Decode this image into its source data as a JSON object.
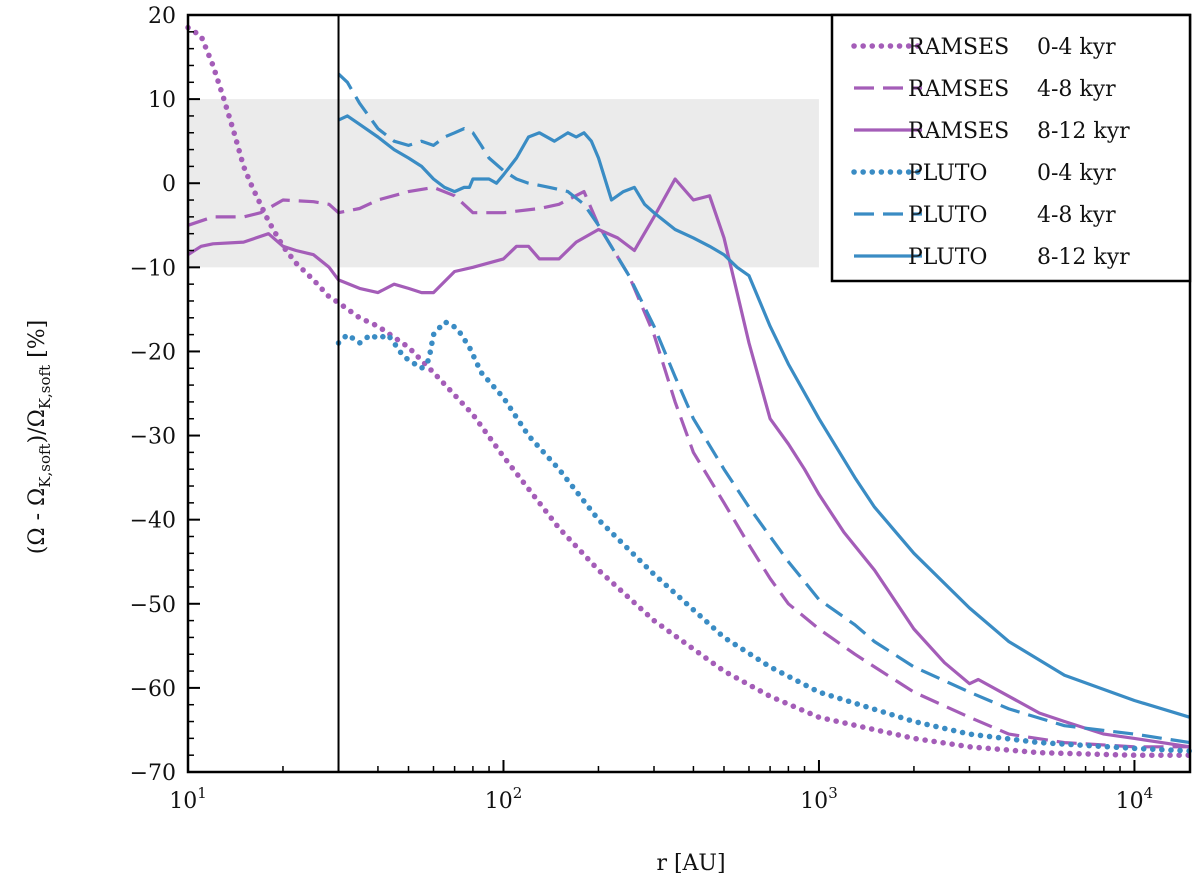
{
  "chart_data": {
    "type": "line",
    "xlabel": "r [AU]",
    "ylabel": "(Ω - Ω_K,soft)/Ω_K,soft [%]",
    "ylabel_parts": {
      "a": "(Ω - Ω",
      "b": "K,soft",
      "c": ")/Ω",
      "d": "K,soft",
      "e": " [%]"
    },
    "xscale": "log",
    "xlim": [
      10,
      15000
    ],
    "ylim": [
      -70,
      20
    ],
    "x_ticks": [
      {
        "base": "10",
        "exp": "1",
        "value": 10
      },
      {
        "base": "10",
        "exp": "2",
        "value": 100
      },
      {
        "base": "10",
        "exp": "3",
        "value": 1000
      },
      {
        "base": "10",
        "exp": "4",
        "value": 10000
      }
    ],
    "y_ticks": [
      20,
      10,
      0,
      -10,
      -20,
      -30,
      -40,
      -50,
      -60,
      -70
    ],
    "y_tick_labels": [
      "20",
      "10",
      "0",
      "−10",
      "−20",
      "−30",
      "−40",
      "−50",
      "−60",
      "−70"
    ],
    "shaded_band": {
      "y_from": -10,
      "y_to": 10,
      "x_to": 1000,
      "color": "#ebebeb"
    },
    "vertical_line_x": 30,
    "legend_position": "top-right",
    "colors": {
      "ramses": "#a45db8",
      "pluto": "#3a8cc4"
    },
    "series": [
      {
        "name": "RAMSES 0-4  kyr",
        "code": "RAMSES",
        "range": "0-4  kyr",
        "color": "#a45db8",
        "style": "dotted",
        "x": [
          10,
          11,
          12,
          13,
          14,
          15,
          16,
          18,
          20,
          22,
          25,
          28,
          30,
          35,
          40,
          50,
          60,
          80,
          100,
          150,
          200,
          300,
          500,
          700,
          1000,
          2000,
          3000,
          5000,
          10000,
          15000
        ],
        "y": [
          18.5,
          17.5,
          14,
          10,
          6,
          2,
          -0.5,
          -4.5,
          -7.5,
          -9.5,
          -11.5,
          -13.5,
          -14.2,
          -16,
          -17,
          -19.5,
          -22.5,
          -27.5,
          -32.5,
          -41,
          -46,
          -52,
          -58,
          -61,
          -63.5,
          -66,
          -67,
          -67.7,
          -68,
          -68
        ]
      },
      {
        "name": "RAMSES 4-8  kyr",
        "code": "RAMSES",
        "range": "4-8  kyr",
        "color": "#a45db8",
        "style": "dashed",
        "x": [
          10,
          12,
          15,
          17,
          20,
          25,
          28,
          30,
          35,
          40,
          50,
          60,
          70,
          80,
          100,
          130,
          150,
          180,
          200,
          250,
          300,
          350,
          400,
          500,
          600,
          700,
          800,
          1000,
          1300,
          1500,
          2000,
          3000,
          4000,
          6000,
          10000,
          15000
        ],
        "y": [
          -5,
          -4,
          -4,
          -3.5,
          -2,
          -2.2,
          -2.5,
          -3.5,
          -3,
          -2,
          -1,
          -0.5,
          -1.5,
          -3.5,
          -3.5,
          -3,
          -2.5,
          -1,
          -5,
          -11,
          -18,
          -26,
          -32,
          -38,
          -43,
          -47,
          -50,
          -53,
          -56,
          -57.5,
          -60.5,
          -63.5,
          -65.5,
          -66.5,
          -67,
          -67
        ]
      },
      {
        "name": "RAMSES 8-12 kyr",
        "code": "RAMSES",
        "range": "8-12 kyr",
        "color": "#a45db8",
        "style": "solid",
        "x": [
          10,
          11,
          12,
          15,
          18,
          20,
          22,
          25,
          28,
          30,
          35,
          40,
          45,
          50,
          55,
          60,
          70,
          80,
          100,
          110,
          120,
          130,
          150,
          170,
          200,
          230,
          260,
          300,
          350,
          400,
          450,
          500,
          550,
          600,
          700,
          800,
          900,
          1000,
          1200,
          1500,
          2000,
          2500,
          3000,
          3200,
          4000,
          5000,
          6000,
          8000,
          10000,
          15000
        ],
        "y": [
          -8.5,
          -7.5,
          -7.2,
          -7,
          -6,
          -7.5,
          -8,
          -8.5,
          -10,
          -11.5,
          -12.5,
          -13,
          -12,
          -12.5,
          -13,
          -13,
          -10.5,
          -10,
          -9,
          -7.5,
          -7.5,
          -9,
          -9,
          -7,
          -5.5,
          -6.5,
          -8,
          -4,
          0.5,
          -2,
          -1.5,
          -6.5,
          -13,
          -19,
          -28,
          -31,
          -34,
          -37,
          -41.5,
          -46,
          -53,
          -57,
          -59.5,
          -59,
          -61,
          -63,
          -64,
          -65.5,
          -66,
          -67
        ]
      },
      {
        "name": "PLUTO   0-4  kyr",
        "code": "PLUTO",
        "range": "0-4  kyr",
        "color": "#3a8cc4",
        "style": "dotted",
        "x": [
          30,
          32,
          35,
          38,
          40,
          43,
          45,
          48,
          50,
          55,
          58,
          60,
          65,
          68,
          72,
          78,
          85,
          100,
          120,
          150,
          200,
          300,
          500,
          700,
          1000,
          2000,
          3000,
          5000,
          10000,
          15000
        ],
        "y": [
          -19,
          -18,
          -19,
          -18,
          -18.5,
          -18,
          -19,
          -20.5,
          -21,
          -22,
          -21,
          -18,
          -16.5,
          -16.7,
          -17.5,
          -19.5,
          -22.5,
          -25.5,
          -30,
          -34,
          -40,
          -46.5,
          -54,
          -57.5,
          -60.5,
          -64,
          -65.5,
          -66.5,
          -67.2,
          -67.5
        ]
      },
      {
        "name": "PLUTO   4-8  kyr",
        "code": "PLUTO",
        "range": "4-8  kyr",
        "color": "#3a8cc4",
        "style": "dashed",
        "x": [
          30,
          32,
          35,
          40,
          45,
          50,
          55,
          60,
          65,
          70,
          75,
          80,
          85,
          90,
          100,
          110,
          120,
          140,
          160,
          180,
          200,
          250,
          300,
          350,
          400,
          500,
          600,
          700,
          800,
          1000,
          1300,
          1500,
          2000,
          3000,
          4000,
          6000,
          10000,
          15000
        ],
        "y": [
          13,
          12,
          9.5,
          6.5,
          5,
          4.5,
          5,
          4.5,
          5.5,
          6,
          6.5,
          6,
          4.5,
          3,
          1.5,
          0.5,
          0,
          -0.5,
          -1,
          -2.5,
          -5,
          -11,
          -17,
          -23,
          -28,
          -34,
          -38.5,
          -42,
          -45,
          -49.5,
          -52.5,
          -54.5,
          -57.5,
          -60.5,
          -62.5,
          -64.5,
          -65.5,
          -66.5
        ]
      },
      {
        "name": "PLUTO   8-12 kyr",
        "code": "PLUTO",
        "range": "8-12 kyr",
        "color": "#3a8cc4",
        "style": "solid",
        "x": [
          30,
          32,
          35,
          40,
          45,
          50,
          55,
          60,
          65,
          70,
          75,
          78,
          80,
          85,
          90,
          95,
          100,
          110,
          120,
          130,
          145,
          160,
          170,
          180,
          190,
          200,
          220,
          240,
          260,
          280,
          300,
          350,
          400,
          450,
          500,
          550,
          600,
          700,
          800,
          1000,
          1300,
          1500,
          2000,
          3000,
          4000,
          6000,
          10000,
          15000
        ],
        "y": [
          7.5,
          8,
          7,
          5.5,
          4,
          3,
          2,
          0.5,
          -0.5,
          -1,
          -0.5,
          -0.5,
          0.5,
          0.5,
          0.5,
          0,
          1,
          3,
          5.5,
          6,
          5,
          6,
          5.5,
          6,
          5,
          3,
          -2,
          -1,
          -0.5,
          -2.5,
          -3.5,
          -5.5,
          -6.5,
          -7.5,
          -8.5,
          -10,
          -11,
          -17,
          -21.5,
          -28,
          -35,
          -38.5,
          -44,
          -50.5,
          -54.5,
          -58.5,
          -61.5,
          -63.5
        ]
      }
    ]
  }
}
